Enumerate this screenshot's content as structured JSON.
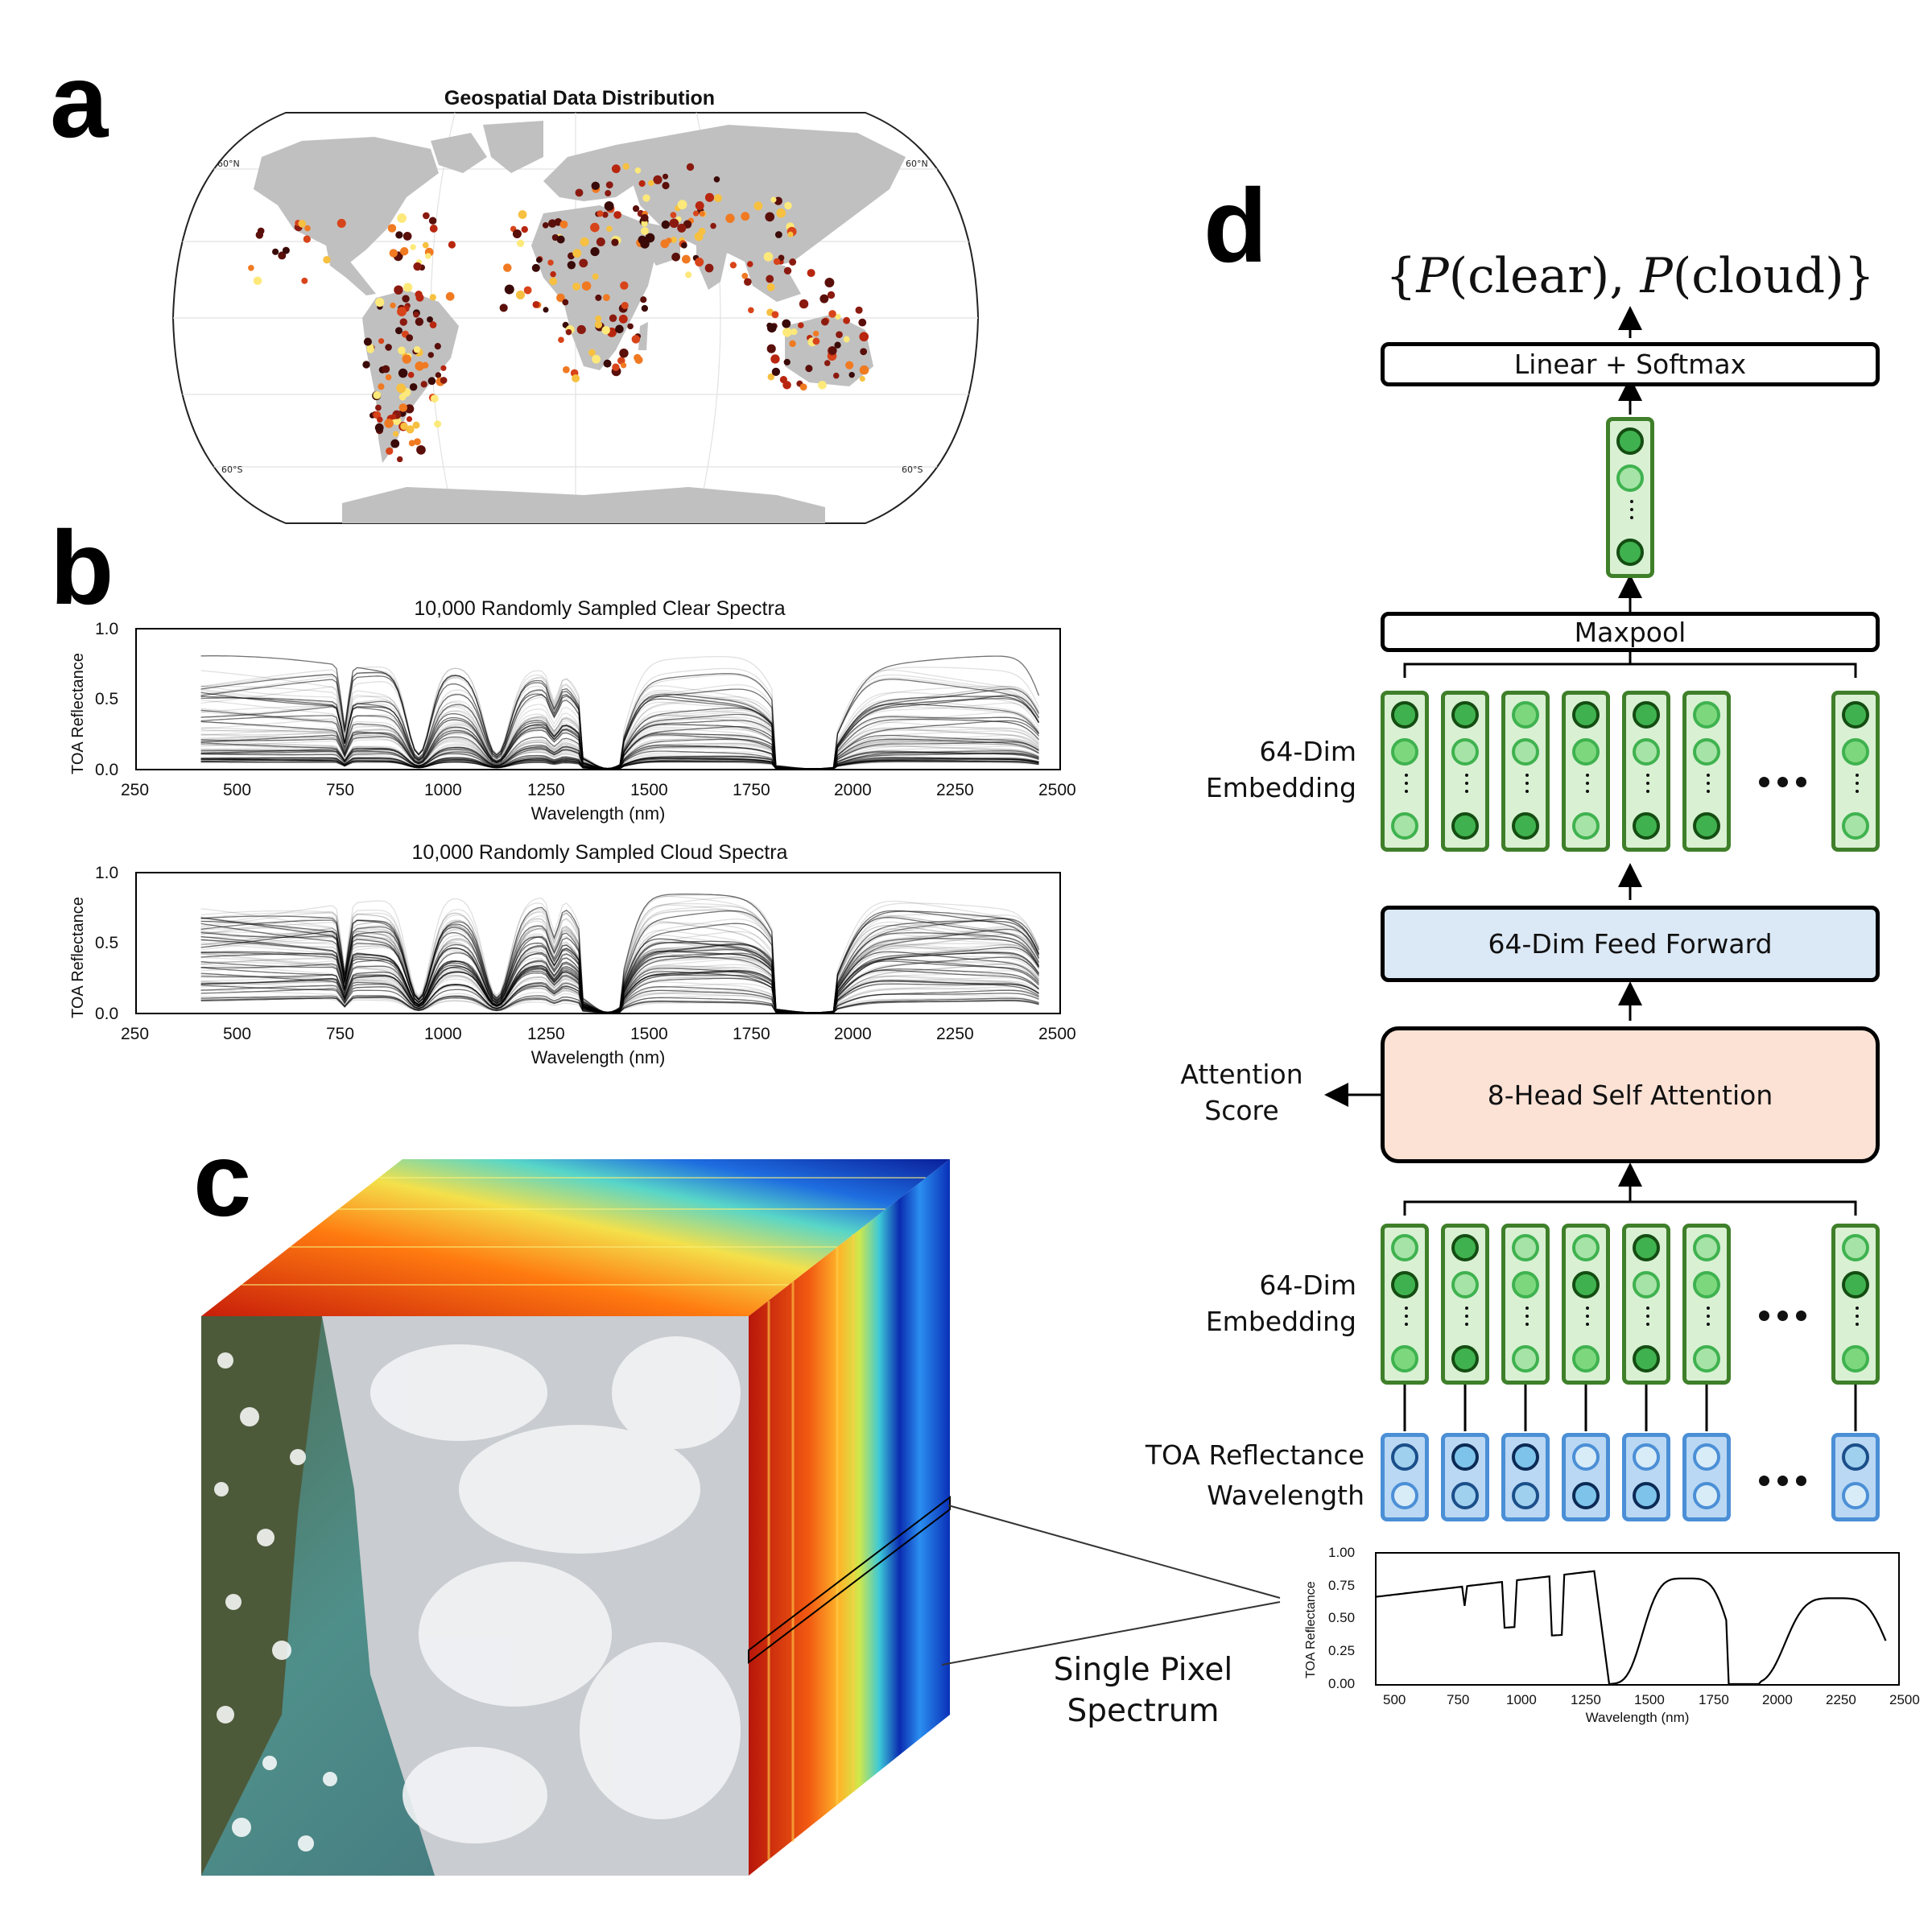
{
  "panels": {
    "a": "a",
    "b": "b",
    "c": "c",
    "d": "d"
  },
  "map": {
    "title": "Geospatial Data Distribution",
    "lat_labels": {
      "n_left": "60°N",
      "n_right": "60°N",
      "s_left": "60°S",
      "s_right": "60°S"
    }
  },
  "spectra": [
    {
      "title": "10,000 Randomly Sampled Clear Spectra",
      "ylabel": "TOA Reflectance",
      "xlabel": "Wavelength (nm)",
      "yticks": [
        "1.0",
        "0.5",
        "0.0"
      ],
      "xticks": [
        "250",
        "500",
        "750",
        "1000",
        "1250",
        "1500",
        "1750",
        "2000",
        "2250",
        "2500"
      ]
    },
    {
      "title": "10,000 Randomly Sampled Cloud Spectra",
      "ylabel": "TOA Reflectance",
      "xlabel": "Wavelength (nm)",
      "yticks": [
        "1.0",
        "0.5",
        "0.0"
      ],
      "xticks": [
        "250",
        "500",
        "750",
        "1000",
        "1250",
        "1500",
        "1750",
        "2000",
        "2250",
        "2500"
      ]
    }
  ],
  "cube": {
    "callout": "Single Pixel\nSpectrum",
    "callout_line1": "Single Pixel",
    "callout_line2": "Spectrum"
  },
  "pixel_plot": {
    "ylabel": "TOA Reflectance",
    "xlabel": "Wavelength (nm)",
    "yticks": [
      "1.00",
      "0.75",
      "0.50",
      "0.25",
      "0.00"
    ],
    "xticks": [
      "500",
      "750",
      "1000",
      "1250",
      "1500",
      "1750",
      "2000",
      "2250",
      "2500"
    ]
  },
  "architecture": {
    "output": "{P(clear), P(cloud)}",
    "output_prefix": "{",
    "output_p1": "P",
    "output_a1": "(clear), ",
    "output_p2": "P",
    "output_a2": "(cloud)}",
    "linear_softmax": "Linear + Softmax",
    "maxpool": "Maxpool",
    "embedding_top": "64-Dim\nEmbedding",
    "embedding_top_l1": "64-Dim",
    "embedding_top_l2": "Embedding",
    "feed_forward": "64-Dim Feed Forward",
    "attention": "8-Head Self Attention",
    "attention_score_l1": "Attention",
    "attention_score_l2": "Score",
    "embedding_bottom_l1": "64-Dim",
    "embedding_bottom_l2": "Embedding",
    "input_l1": "TOA Reflectance",
    "input_l2": "Wavelength"
  },
  "colors": {
    "green_border": "#3f7f2a",
    "green_fill": "#d9f0d3",
    "blue_border": "#4b8fd6",
    "blue_fill": "#bad8f3",
    "feed_forward_fill": "#dbe8f5",
    "attention_fill": "#fbe2d5",
    "land": "#c0c0c0"
  }
}
